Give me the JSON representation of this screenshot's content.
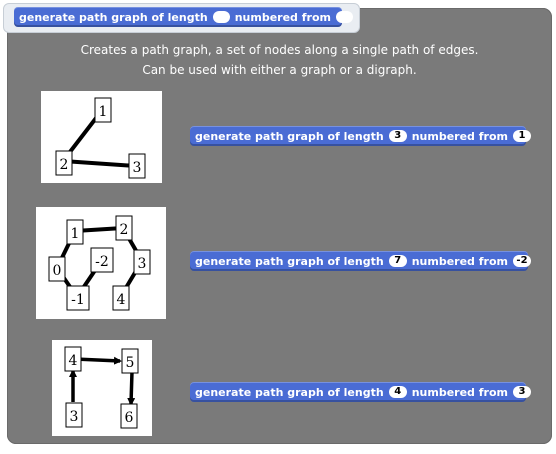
{
  "header_block": {
    "text1": "generate path graph of length",
    "text2": "numbered from"
  },
  "description": {
    "line1": "Creates a path graph, a set of nodes along a single path of edges.",
    "line2": "Can be used with either a graph or a digraph."
  },
  "examples": [
    {
      "text1": "generate path graph of length",
      "length": "3",
      "text2": "numbered from",
      "start": "1",
      "nodes": [
        "1",
        "2",
        "3"
      ]
    },
    {
      "text1": "generate path graph of length",
      "length": "7",
      "text2": "numbered from",
      "start": "-2",
      "nodes": [
        "1",
        "2",
        "0",
        "-2",
        "3",
        "-1",
        "4"
      ]
    },
    {
      "text1": "generate path graph of length",
      "length": "4",
      "text2": "numbered from",
      "start": "3",
      "nodes": [
        "4",
        "5",
        "3",
        "6"
      ]
    }
  ],
  "colors": {
    "panel": "#7a7a7a",
    "block": "#4a6cd4",
    "header_bg": "#e9edf2"
  }
}
